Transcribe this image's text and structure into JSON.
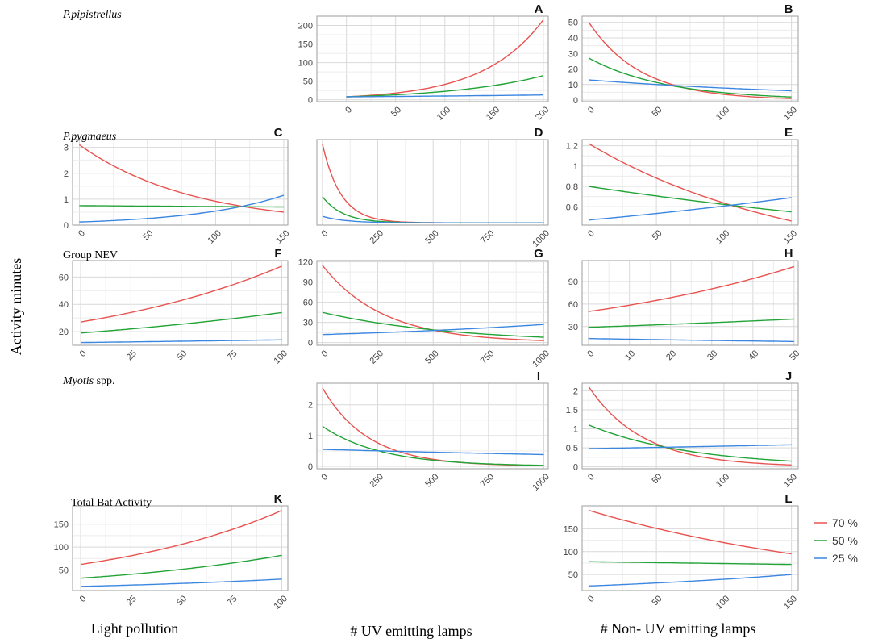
{
  "figure": {
    "y_axis_title": "Activity minutes",
    "x_axis_titles": [
      "Light pollution",
      "# UV emitting lamps",
      "# Non- UV emitting lamps"
    ],
    "legend": [
      {
        "label": "70 %",
        "color": "#e8524f"
      },
      {
        "label": "50 %",
        "color": "#21a336"
      },
      {
        "label": "25 %",
        "color": "#3b86e0"
      }
    ],
    "row_labels": [
      {
        "pre": "",
        "italic": "P.pipistrellus",
        "post": ""
      },
      {
        "pre": "",
        "italic": "P.pygmaeus",
        "post": ""
      },
      {
        "pre": "Group NEV",
        "italic": "",
        "post": ""
      },
      {
        "pre": "",
        "italic": "Myotis",
        "post": " spp."
      },
      {
        "pre": "Total Bat Activity",
        "italic": "",
        "post": ""
      }
    ]
  },
  "chart_data": [
    {
      "type": "line",
      "letter": "A",
      "row": 0,
      "col": 1,
      "xlim": [
        -30,
        205
      ],
      "ylim": [
        -5,
        225
      ],
      "xticks": [
        0,
        50,
        100,
        150,
        200
      ],
      "yticks": [
        0,
        50,
        100,
        150,
        200
      ],
      "series": [
        {
          "name": "70 %",
          "model": "exp",
          "x_range": [
            0,
            200
          ],
          "y_start": 8,
          "y_end": 215
        },
        {
          "name": "50 %",
          "model": "exp",
          "x_range": [
            0,
            200
          ],
          "y_start": 8,
          "y_end": 65
        },
        {
          "name": "25 %",
          "model": "exp",
          "x_range": [
            0,
            200
          ],
          "y_start": 8,
          "y_end": 13
        }
      ]
    },
    {
      "type": "line",
      "letter": "B",
      "row": 0,
      "col": 2,
      "xlim": [
        -5,
        155
      ],
      "ylim": [
        -1,
        54
      ],
      "xticks": [
        0,
        50,
        100,
        150
      ],
      "yticks": [
        0,
        10,
        20,
        30,
        40,
        50
      ],
      "series": [
        {
          "name": "70 %",
          "model": "exp",
          "x_range": [
            0,
            150
          ],
          "y_start": 50,
          "y_end": 1
        },
        {
          "name": "50 %",
          "model": "exp",
          "x_range": [
            0,
            150
          ],
          "y_start": 27,
          "y_end": 2
        },
        {
          "name": "25 %",
          "model": "exp",
          "x_range": [
            0,
            150
          ],
          "y_start": 13,
          "y_end": 6
        }
      ]
    },
    {
      "type": "line",
      "letter": "C",
      "row": 1,
      "col": 0,
      "xlim": [
        -5,
        153
      ],
      "ylim": [
        0,
        3.3
      ],
      "xticks": [
        0,
        50,
        100,
        150
      ],
      "yticks": [
        0,
        1,
        2,
        3
      ],
      "series": [
        {
          "name": "70 %",
          "model": "exp",
          "x_range": [
            0,
            150
          ],
          "y_start": 3.1,
          "y_end": 0.5
        },
        {
          "name": "50 %",
          "model": "exp",
          "x_range": [
            0,
            150
          ],
          "y_start": 0.75,
          "y_end": 0.7
        },
        {
          "name": "25 %",
          "model": "exp",
          "x_range": [
            0,
            150
          ],
          "y_start": 0.12,
          "y_end": 1.15
        }
      ]
    },
    {
      "type": "line",
      "letter": "D",
      "row": 1,
      "col": 1,
      "xlim": [
        -25,
        1020
      ],
      "ylim": [
        -0.5,
        19
      ],
      "xticks": [
        0,
        250,
        500,
        750,
        1000
      ],
      "yticks": [],
      "series": [
        {
          "name": "70 %",
          "model": "exp",
          "x_range": [
            0,
            1000
          ],
          "y_start": 18,
          "y_end": 0
        },
        {
          "name": "50 %",
          "model": "exp",
          "x_range": [
            0,
            1000
          ],
          "y_start": 6,
          "y_end": 0
        },
        {
          "name": "25 %",
          "model": "exp",
          "x_range": [
            0,
            1000
          ],
          "y_start": 1.5,
          "y_end": 0
        }
      ]
    },
    {
      "type": "line",
      "letter": "E",
      "row": 1,
      "col": 2,
      "xlim": [
        -5,
        155
      ],
      "ylim": [
        0.42,
        1.26
      ],
      "xticks": [
        0,
        50,
        100,
        150
      ],
      "yticks": [
        0.6,
        0.8,
        1.0,
        1.2
      ],
      "series": [
        {
          "name": "70 %",
          "model": "exp",
          "x_range": [
            0,
            150
          ],
          "y_start": 1.22,
          "y_end": 0.46
        },
        {
          "name": "50 %",
          "model": "exp",
          "x_range": [
            0,
            150
          ],
          "y_start": 0.8,
          "y_end": 0.55
        },
        {
          "name": "25 %",
          "model": "exp",
          "x_range": [
            0,
            150
          ],
          "y_start": 0.47,
          "y_end": 0.69
        }
      ]
    },
    {
      "type": "line",
      "letter": "F",
      "row": 2,
      "col": 0,
      "xlim": [
        -4,
        103
      ],
      "ylim": [
        10,
        72
      ],
      "xticks": [
        0,
        25,
        50,
        75,
        100
      ],
      "yticks": [
        20,
        40,
        60
      ],
      "series": [
        {
          "name": "70 %",
          "model": "exp",
          "x_range": [
            0,
            100
          ],
          "y_start": 27,
          "y_end": 68
        },
        {
          "name": "50 %",
          "model": "exp",
          "x_range": [
            0,
            100
          ],
          "y_start": 19,
          "y_end": 34
        },
        {
          "name": "25 %",
          "model": "exp",
          "x_range": [
            0,
            100
          ],
          "y_start": 12,
          "y_end": 14
        }
      ]
    },
    {
      "type": "line",
      "letter": "G",
      "row": 2,
      "col": 1,
      "xlim": [
        -25,
        1020
      ],
      "ylim": [
        -4,
        122
      ],
      "xticks": [
        0,
        250,
        500,
        750,
        1000
      ],
      "yticks": [
        0,
        30,
        60,
        90,
        120
      ],
      "series": [
        {
          "name": "70 %",
          "model": "exp",
          "x_range": [
            0,
            1000
          ],
          "y_start": 115,
          "y_end": 3
        },
        {
          "name": "50 %",
          "model": "exp",
          "x_range": [
            0,
            1000
          ],
          "y_start": 45,
          "y_end": 8
        },
        {
          "name": "25 %",
          "model": "exp",
          "x_range": [
            0,
            1000
          ],
          "y_start": 12,
          "y_end": 27
        }
      ]
    },
    {
      "type": "line",
      "letter": "H",
      "row": 2,
      "col": 2,
      "xlim": [
        -1.5,
        51
      ],
      "ylim": [
        5,
        118
      ],
      "xticks": [
        0,
        10,
        20,
        30,
        40,
        50
      ],
      "yticks": [
        30,
        60,
        90
      ],
      "series": [
        {
          "name": "70 %",
          "model": "exp",
          "x_range": [
            0,
            50
          ],
          "y_start": 50,
          "y_end": 110
        },
        {
          "name": "50 %",
          "model": "exp",
          "x_range": [
            0,
            50
          ],
          "y_start": 29,
          "y_end": 40
        },
        {
          "name": "25 %",
          "model": "exp",
          "x_range": [
            0,
            50
          ],
          "y_start": 14,
          "y_end": 10
        }
      ]
    },
    {
      "type": "line",
      "letter": "I",
      "row": 3,
      "col": 1,
      "xlim": [
        -25,
        1020
      ],
      "ylim": [
        -0.08,
        2.7
      ],
      "xticks": [
        0,
        250,
        500,
        750,
        1000
      ],
      "yticks": [
        0,
        1,
        2
      ],
      "series": [
        {
          "name": "70 %",
          "model": "exp",
          "x_range": [
            0,
            1000
          ],
          "y_start": 2.55,
          "y_end": 0.02
        },
        {
          "name": "50 %",
          "model": "exp",
          "x_range": [
            0,
            1000
          ],
          "y_start": 1.3,
          "y_end": 0.03
        },
        {
          "name": "25 %",
          "model": "exp",
          "x_range": [
            0,
            1000
          ],
          "y_start": 0.55,
          "y_end": 0.38
        }
      ]
    },
    {
      "type": "line",
      "letter": "J",
      "row": 3,
      "col": 2,
      "xlim": [
        -5,
        155
      ],
      "ylim": [
        -0.05,
        2.2
      ],
      "xticks": [
        0,
        50,
        100,
        150
      ],
      "yticks": [
        0.0,
        0.5,
        1.0,
        1.5,
        2.0
      ],
      "series": [
        {
          "name": "70 %",
          "model": "exp",
          "x_range": [
            0,
            150
          ],
          "y_start": 2.1,
          "y_end": 0.05
        },
        {
          "name": "50 %",
          "model": "exp",
          "x_range": [
            0,
            150
          ],
          "y_start": 1.1,
          "y_end": 0.15
        },
        {
          "name": "25 %",
          "model": "exp",
          "x_range": [
            0,
            150
          ],
          "y_start": 0.48,
          "y_end": 0.58
        }
      ]
    },
    {
      "type": "line",
      "letter": "K",
      "row": 4,
      "col": 0,
      "xlim": [
        -4,
        103
      ],
      "ylim": [
        5,
        190
      ],
      "xticks": [
        0,
        25,
        50,
        75,
        100
      ],
      "yticks": [
        50,
        100,
        150
      ],
      "series": [
        {
          "name": "70 %",
          "model": "exp",
          "x_range": [
            0,
            100
          ],
          "y_start": 62,
          "y_end": 180
        },
        {
          "name": "50 %",
          "model": "exp",
          "x_range": [
            0,
            100
          ],
          "y_start": 32,
          "y_end": 82
        },
        {
          "name": "25 %",
          "model": "exp",
          "x_range": [
            0,
            100
          ],
          "y_start": 14,
          "y_end": 30
        }
      ]
    },
    {
      "type": "line",
      "letter": "L",
      "row": 4,
      "col": 2,
      "xlim": [
        -5,
        155
      ],
      "ylim": [
        15,
        200
      ],
      "xticks": [
        0,
        50,
        100,
        150
      ],
      "yticks": [
        50,
        100,
        150
      ],
      "series": [
        {
          "name": "70 %",
          "model": "exp",
          "x_range": [
            0,
            150
          ],
          "y_start": 190,
          "y_end": 95
        },
        {
          "name": "50 %",
          "model": "exp",
          "x_range": [
            0,
            150
          ],
          "y_start": 78,
          "y_end": 72
        },
        {
          "name": "25 %",
          "model": "exp",
          "x_range": [
            0,
            150
          ],
          "y_start": 25,
          "y_end": 50
        }
      ]
    }
  ]
}
